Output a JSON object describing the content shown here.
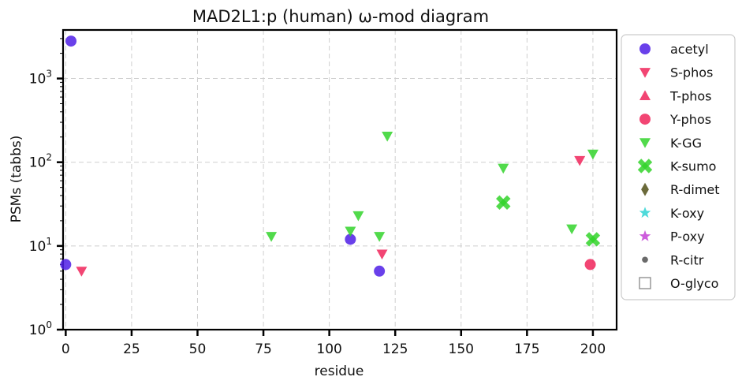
{
  "chart_data": {
    "type": "scatter",
    "title": "MAD2L1:p (human) ω-mod diagram",
    "xlabel": "residue",
    "ylabel": "PSMs (tabbs)",
    "xlim": [
      -1,
      209
    ],
    "ylim": [
      1,
      3800
    ],
    "yscale": "log",
    "grid": true,
    "legend_position": "outside-right",
    "x_ticks": [
      0,
      25,
      50,
      75,
      100,
      125,
      150,
      175,
      200
    ],
    "y_ticks": [
      {
        "value": 1,
        "base": "10",
        "exp": "0"
      },
      {
        "value": 10,
        "base": "10",
        "exp": "1"
      },
      {
        "value": 100,
        "base": "10",
        "exp": "2"
      },
      {
        "value": 1000,
        "base": "10",
        "exp": "3"
      }
    ],
    "series": [
      {
        "name": "acetyl",
        "marker": "circle",
        "color": "#4f1fe6",
        "points": [
          [
            2,
            2800
          ],
          [
            0,
            6
          ],
          [
            108,
            12
          ],
          [
            119,
            5
          ]
        ]
      },
      {
        "name": "S-phos",
        "marker": "triangle-down",
        "color": "#f0245a",
        "points": [
          [
            6,
            5
          ],
          [
            120,
            8
          ],
          [
            195,
            105
          ]
        ]
      },
      {
        "name": "T-phos",
        "marker": "triangle-up",
        "color": "#f0245a",
        "points": []
      },
      {
        "name": "Y-phos",
        "marker": "circle",
        "color": "#f0245a",
        "points": [
          [
            199,
            6
          ]
        ]
      },
      {
        "name": "K-GG",
        "marker": "triangle-down",
        "color": "#33d42b",
        "points": [
          [
            78,
            13
          ],
          [
            108,
            15
          ],
          [
            111,
            23
          ],
          [
            119,
            13
          ],
          [
            122,
            205
          ],
          [
            166,
            85
          ],
          [
            192,
            16
          ],
          [
            200,
            125
          ]
        ]
      },
      {
        "name": "K-sumo",
        "marker": "x",
        "color": "#33d42b",
        "points": [
          [
            166,
            33
          ],
          [
            200,
            12
          ]
        ]
      },
      {
        "name": "R-dimet",
        "marker": "diamond",
        "color": "#6b6a3a",
        "points": []
      },
      {
        "name": "K-oxy",
        "marker": "star",
        "color": "#2fd3d3",
        "points": []
      },
      {
        "name": "P-oxy",
        "marker": "star",
        "color": "#c43fd6",
        "points": []
      },
      {
        "name": "R-citr",
        "marker": "dot",
        "color": "#6a6a6a",
        "points": []
      },
      {
        "name": "O-glyco",
        "marker": "square-open",
        "color": "#888888",
        "points": []
      }
    ]
  }
}
